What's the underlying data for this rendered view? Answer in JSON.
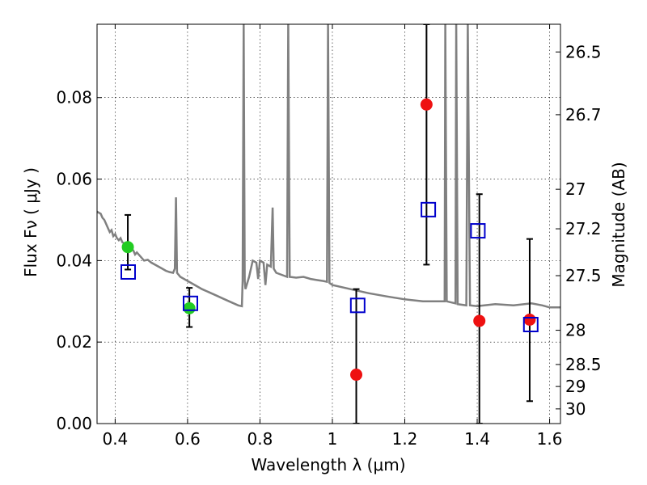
{
  "chart_data": {
    "type": "scatter",
    "xlabel": "Wavelength  λ (μm)",
    "ylabel": "Flux  Fν  ( μJy )",
    "ylabel_right": "Magnitude (AB)",
    "xlim": [
      0.35,
      1.63
    ],
    "ylim": [
      0.0,
      0.098
    ],
    "grid": true,
    "x_ticks": [
      {
        "value": 0.4,
        "label": "0.4"
      },
      {
        "value": 0.6,
        "label": "0.6"
      },
      {
        "value": 0.8,
        "label": "0.8"
      },
      {
        "value": 1.0,
        "label": "1"
      },
      {
        "value": 1.2,
        "label": "1.2"
      },
      {
        "value": 1.4,
        "label": "1.4"
      },
      {
        "value": 1.6,
        "label": "1.6"
      }
    ],
    "y_ticks": [
      {
        "value": 0.0,
        "label": "0.00"
      },
      {
        "value": 0.02,
        "label": "0.02"
      },
      {
        "value": 0.04,
        "label": "0.04"
      },
      {
        "value": 0.06,
        "label": "0.06"
      },
      {
        "value": 0.08,
        "label": "0.08"
      }
    ],
    "right_ticks": [
      {
        "label": "26.5",
        "flux": 0.0912
      },
      {
        "label": "26.7",
        "flux": 0.0758
      },
      {
        "label": "27",
        "flux": 0.0575
      },
      {
        "label": "27.2",
        "flux": 0.0478
      },
      {
        "label": "27.5",
        "flux": 0.0363
      },
      {
        "label": "28",
        "flux": 0.0229
      },
      {
        "label": "28.5",
        "flux": 0.0145
      },
      {
        "label": "29",
        "flux": 0.0091
      },
      {
        "label": "30",
        "flux": 0.0036
      }
    ],
    "series": [
      {
        "kind": "sed_line",
        "color": "#808080",
        "points": [
          [
            0.35,
            0.052
          ],
          [
            0.36,
            0.0515
          ],
          [
            0.365,
            0.0505
          ],
          [
            0.37,
            0.05
          ],
          [
            0.375,
            0.049
          ],
          [
            0.38,
            0.048
          ],
          [
            0.385,
            0.047
          ],
          [
            0.39,
            0.0475
          ],
          [
            0.395,
            0.046
          ],
          [
            0.4,
            0.0465
          ],
          [
            0.405,
            0.0455
          ],
          [
            0.41,
            0.045
          ],
          [
            0.415,
            0.0455
          ],
          [
            0.42,
            0.0445
          ],
          [
            0.43,
            0.044
          ],
          [
            0.44,
            0.043
          ],
          [
            0.45,
            0.0425
          ],
          [
            0.455,
            0.0415
          ],
          [
            0.46,
            0.042
          ],
          [
            0.47,
            0.041
          ],
          [
            0.48,
            0.04
          ],
          [
            0.49,
            0.0402
          ],
          [
            0.5,
            0.0395
          ],
          [
            0.51,
            0.039
          ],
          [
            0.52,
            0.0385
          ],
          [
            0.53,
            0.038
          ],
          [
            0.54,
            0.0375
          ],
          [
            0.55,
            0.0372
          ],
          [
            0.56,
            0.037
          ],
          [
            0.565,
            0.038
          ],
          [
            0.568,
            0.0555
          ],
          [
            0.571,
            0.037
          ],
          [
            0.58,
            0.036
          ],
          [
            0.6,
            0.035
          ],
          [
            0.62,
            0.034
          ],
          [
            0.64,
            0.033
          ],
          [
            0.66,
            0.0322
          ],
          [
            0.68,
            0.0314
          ],
          [
            0.7,
            0.0306
          ],
          [
            0.72,
            0.0298
          ],
          [
            0.74,
            0.029
          ],
          [
            0.75,
            0.0288
          ],
          [
            0.752,
            0.035
          ],
          [
            0.755,
            0.098
          ],
          [
            0.758,
            0.035
          ],
          [
            0.76,
            0.033
          ],
          [
            0.77,
            0.036
          ],
          [
            0.78,
            0.04
          ],
          [
            0.79,
            0.0395
          ],
          [
            0.795,
            0.0355
          ],
          [
            0.8,
            0.04
          ],
          [
            0.81,
            0.0395
          ],
          [
            0.815,
            0.034
          ],
          [
            0.82,
            0.039
          ],
          [
            0.83,
            0.0385
          ],
          [
            0.835,
            0.053
          ],
          [
            0.838,
            0.038
          ],
          [
            0.845,
            0.037
          ],
          [
            0.86,
            0.0365
          ],
          [
            0.875,
            0.036
          ],
          [
            0.878,
            0.098
          ],
          [
            0.882,
            0.036
          ],
          [
            0.9,
            0.0358
          ],
          [
            0.92,
            0.036
          ],
          [
            0.94,
            0.0355
          ],
          [
            0.96,
            0.0352
          ],
          [
            0.975,
            0.035
          ],
          [
            0.985,
            0.0348
          ],
          [
            0.988,
            0.098
          ],
          [
            0.992,
            0.0345
          ],
          [
            1.0,
            0.034
          ],
          [
            1.05,
            0.033
          ],
          [
            1.1,
            0.032
          ],
          [
            1.15,
            0.0312
          ],
          [
            1.2,
            0.0305
          ],
          [
            1.25,
            0.03
          ],
          [
            1.3,
            0.03
          ],
          [
            1.31,
            0.03
          ],
          [
            1.312,
            0.098
          ],
          [
            1.316,
            0.03
          ],
          [
            1.34,
            0.0295
          ],
          [
            1.342,
            0.098
          ],
          [
            1.346,
            0.0293
          ],
          [
            1.37,
            0.029
          ],
          [
            1.374,
            0.098
          ],
          [
            1.38,
            0.029
          ],
          [
            1.4,
            0.0288
          ],
          [
            1.45,
            0.0293
          ],
          [
            1.5,
            0.029
          ],
          [
            1.55,
            0.0295
          ],
          [
            1.58,
            0.029
          ],
          [
            1.6,
            0.0285
          ],
          [
            1.63,
            0.0285
          ]
        ]
      },
      {
        "kind": "points",
        "marker": "circle",
        "color": "#22cc22",
        "points": [
          {
            "x": 0.435,
            "y": 0.0433,
            "yerr_low": 0.0378,
            "yerr_high": 0.0512
          },
          {
            "x": 0.605,
            "y": 0.0283,
            "yerr_low": 0.0237,
            "yerr_high": 0.0333
          }
        ]
      },
      {
        "kind": "points",
        "marker": "circle",
        "color": "#ee1111",
        "points": [
          {
            "x": 1.066,
            "y": 0.012,
            "yerr_low": 0.0,
            "yerr_high": 0.033
          },
          {
            "x": 1.26,
            "y": 0.0783,
            "yerr_low": 0.039,
            "yerr_high": 0.098
          },
          {
            "x": 1.406,
            "y": 0.0252,
            "yerr_low": 0.0,
            "yerr_high": 0.0563
          },
          {
            "x": 1.545,
            "y": 0.0255,
            "yerr_low": 0.0055,
            "yerr_high": 0.0453
          }
        ]
      },
      {
        "kind": "points",
        "marker": "open-square",
        "color": "#0000cc",
        "points": [
          {
            "x": 0.436,
            "y": 0.0372
          },
          {
            "x": 0.608,
            "y": 0.0295
          },
          {
            "x": 1.07,
            "y": 0.029
          },
          {
            "x": 1.265,
            "y": 0.0525
          },
          {
            "x": 1.402,
            "y": 0.0473
          },
          {
            "x": 1.548,
            "y": 0.0243
          }
        ]
      }
    ]
  }
}
